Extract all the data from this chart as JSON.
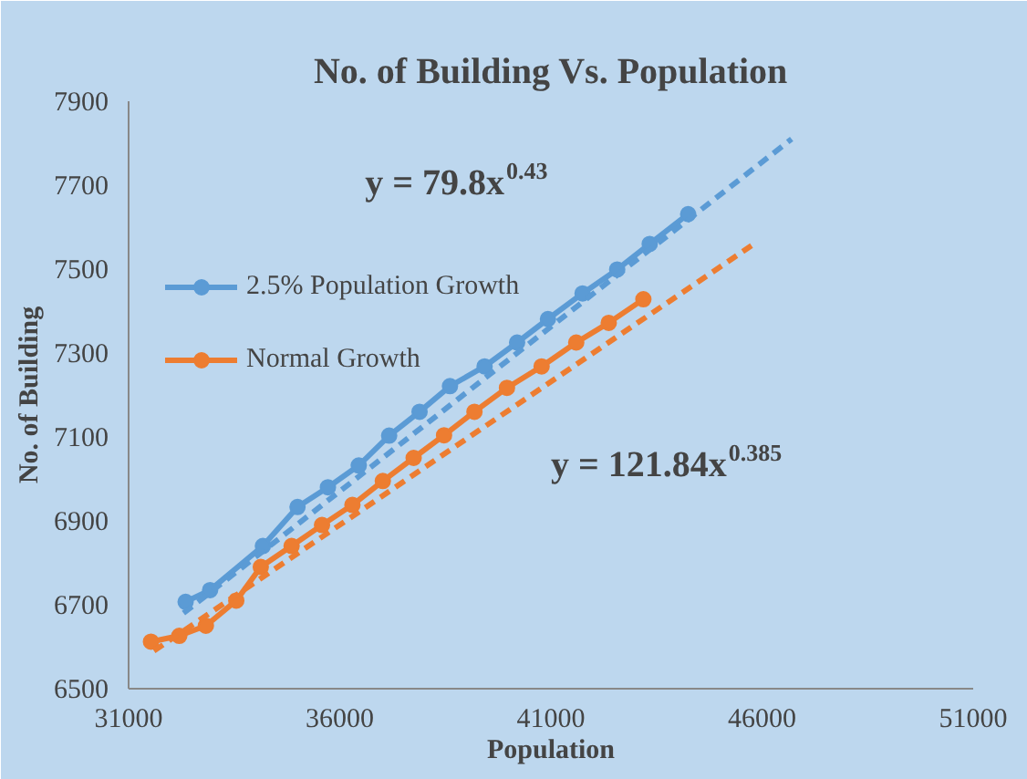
{
  "chart_data": {
    "type": "line",
    "title": "No. of Building Vs. Population",
    "xlabel": "Population",
    "ylabel": "No. of Building",
    "xlim": [
      31000,
      51000
    ],
    "xticks": [
      31000,
      36000,
      41000,
      46000,
      51000
    ],
    "ylim": [
      6500,
      7900
    ],
    "yticks": [
      6500,
      6700,
      6900,
      7100,
      7300,
      7500,
      7700,
      7900
    ],
    "grid": false,
    "legend": "left",
    "marker": "circle",
    "line_style": "solid",
    "series": [
      {
        "name": "2.5% Population Growth",
        "color": "#5b9bd5",
        "x": [
          32350,
          32930,
          34180,
          35000,
          35720,
          36450,
          37170,
          37890,
          38610,
          39430,
          40200,
          40930,
          41750,
          42570,
          43340,
          44250
        ],
        "values": [
          6707,
          6735,
          6840,
          6933,
          6980,
          7032,
          7103,
          7160,
          7221,
          7268,
          7325,
          7381,
          7442,
          7499,
          7560,
          7631
        ]
      },
      {
        "name": "Normal Growth",
        "color": "#ed7d31",
        "x": [
          31530,
          32200,
          32830,
          33550,
          34130,
          34860,
          35580,
          36300,
          37020,
          37750,
          38470,
          39190,
          39960,
          40780,
          41600,
          42370,
          43190
        ],
        "values": [
          6612,
          6626,
          6650,
          6710,
          6790,
          6840,
          6890,
          6938,
          6995,
          7050,
          7104,
          7160,
          7217,
          7268,
          7325,
          7372,
          7428
        ]
      },
      {
        "type": "line",
        "color": "#5b9bd5",
        "marker": "none",
        "line_style": "dashed",
        "x": [
          32300,
          46700
        ],
        "values": [
          6680,
          7810
        ]
      },
      {
        "type": "line",
        "color": "#ed7d31",
        "marker": "none",
        "line_style": "dashed",
        "x": [
          31600,
          45750
        ],
        "values": [
          6590,
          7556
        ]
      }
    ],
    "annotations": [
      "y = 79.8x$^{0.43}$",
      "y = 121.84x$^{0.385}$"
    ]
  }
}
